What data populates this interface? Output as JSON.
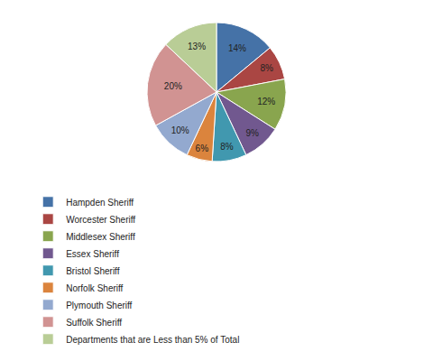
{
  "chart_data": {
    "type": "pie",
    "categories": [
      "Hampden Sheriff",
      "Worcester Sheriff",
      "Middlesex Sheriff",
      "Essex Sheriff",
      "Bristol Sheriff",
      "Norfolk Sheriff",
      "Plymouth Sheriff",
      "Suffolk Sheriff",
      "Departments that are Less than 5% of Total"
    ],
    "values": [
      14,
      8,
      12,
      9,
      8,
      6,
      10,
      20,
      13
    ],
    "value_labels": [
      "14%",
      "8%",
      "12%",
      "9%",
      "8%",
      "6%",
      "10%",
      "20%",
      "13%"
    ],
    "colors": [
      "#4572A7",
      "#AA4643",
      "#89A54E",
      "#71588F",
      "#4198AF",
      "#DB843D",
      "#93A9CF",
      "#D19392",
      "#B9CD96"
    ],
    "data_labels": true,
    "legend": "bottom"
  }
}
